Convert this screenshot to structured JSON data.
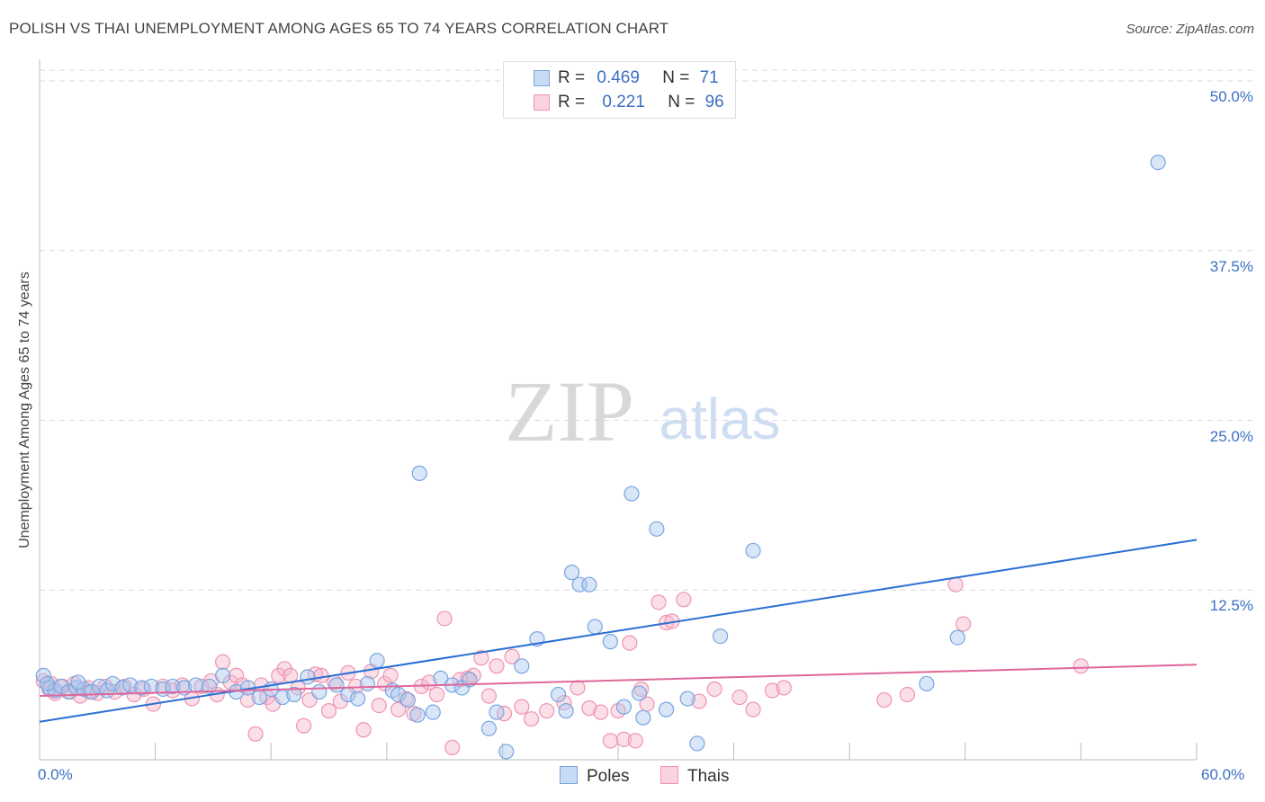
{
  "title": "POLISH VS THAI UNEMPLOYMENT AMONG AGES 65 TO 74 YEARS CORRELATION CHART",
  "source": "Source: ZipAtlas.com",
  "watermark": {
    "zip": "ZIP",
    "atlas": "atlas"
  },
  "legend_top": {
    "r_label": "R =",
    "n_label": "N =",
    "rows": [
      {
        "r": "0.469",
        "n": "71",
        "color": "#a8c7f0"
      },
      {
        "r": "0.221",
        "n": "96",
        "color": "#f7b8cc"
      }
    ]
  },
  "colors": {
    "poles_fill": "#a8c7f0",
    "poles_stroke": "#7aa5e0",
    "poles_line": "#2a6fd4",
    "thais_fill": "#f7b8cc",
    "thais_stroke": "#ef93b1",
    "thais_line": "#e0679a",
    "tick_text": "#3b6fc4",
    "grid": "#d9d9d9"
  },
  "chart_data": {
    "type": "scatter",
    "title": "POLISH VS THAI UNEMPLOYMENT AMONG AGES 65 TO 74 YEARS CORRELATION CHART",
    "xlabel": "",
    "ylabel": "Unemployment Among Ages 65 to 74 years",
    "xlim": [
      0,
      60
    ],
    "ylim": [
      0,
      50
    ],
    "x_tick_labels": [
      "0.0%",
      "60.0%"
    ],
    "y_ticks": [
      {
        "value": 12.5,
        "label": "12.5%"
      },
      {
        "value": 25,
        "label": "25.0%"
      },
      {
        "value": 37.5,
        "label": "37.5%"
      },
      {
        "value": 50,
        "label": "50.0%"
      }
    ],
    "grid": true,
    "legend_position": "bottom-center",
    "series": [
      {
        "name": "Poles",
        "r": 0.469,
        "n": 71,
        "trend": [
          [
            0,
            2.8
          ],
          [
            60,
            16.2
          ]
        ],
        "points": [
          [
            0.2,
            6.2
          ],
          [
            0.5,
            5.3
          ],
          [
            0.8,
            5.1
          ],
          [
            1.1,
            5.4
          ],
          [
            1.5,
            5.0
          ],
          [
            1.9,
            5.3
          ],
          [
            2.3,
            5.2
          ],
          [
            2.7,
            5.0
          ],
          [
            3.1,
            5.4
          ],
          [
            3.5,
            5.1
          ],
          [
            3.8,
            5.6
          ],
          [
            4.3,
            5.3
          ],
          [
            4.7,
            5.5
          ],
          [
            5.3,
            5.3
          ],
          [
            5.8,
            5.4
          ],
          [
            6.4,
            5.2
          ],
          [
            6.9,
            5.4
          ],
          [
            7.5,
            5.3
          ],
          [
            8.1,
            5.5
          ],
          [
            8.8,
            5.4
          ],
          [
            9.5,
            6.2
          ],
          [
            10.2,
            5.0
          ],
          [
            10.8,
            5.3
          ],
          [
            11.4,
            4.6
          ],
          [
            12.0,
            5.2
          ],
          [
            12.6,
            4.6
          ],
          [
            13.2,
            4.8
          ],
          [
            13.9,
            6.1
          ],
          [
            14.5,
            5.0
          ],
          [
            15.4,
            5.5
          ],
          [
            16.0,
            4.8
          ],
          [
            16.5,
            4.5
          ],
          [
            17.0,
            5.6
          ],
          [
            17.5,
            7.3
          ],
          [
            18.3,
            5.1
          ],
          [
            18.6,
            4.8
          ],
          [
            19.1,
            4.4
          ],
          [
            19.6,
            3.3
          ],
          [
            19.7,
            21.1
          ],
          [
            20.4,
            3.5
          ],
          [
            20.8,
            6.0
          ],
          [
            21.4,
            5.5
          ],
          [
            21.9,
            5.3
          ],
          [
            22.3,
            5.9
          ],
          [
            23.3,
            2.3
          ],
          [
            23.7,
            3.5
          ],
          [
            24.2,
            0.6
          ],
          [
            25.0,
            6.9
          ],
          [
            25.8,
            8.9
          ],
          [
            26.9,
            4.8
          ],
          [
            27.3,
            3.6
          ],
          [
            27.6,
            13.8
          ],
          [
            28.0,
            12.9
          ],
          [
            28.5,
            12.9
          ],
          [
            28.8,
            9.8
          ],
          [
            29.6,
            8.7
          ],
          [
            30.3,
            3.9
          ],
          [
            30.7,
            19.6
          ],
          [
            31.1,
            4.9
          ],
          [
            31.3,
            3.1
          ],
          [
            32.0,
            17.0
          ],
          [
            32.5,
            3.7
          ],
          [
            33.6,
            4.5
          ],
          [
            34.1,
            1.2
          ],
          [
            35.3,
            9.1
          ],
          [
            37.0,
            15.4
          ],
          [
            46.0,
            5.6
          ],
          [
            47.6,
            9.0
          ],
          [
            58.0,
            44.0
          ],
          [
            0.4,
            5.6
          ],
          [
            2.0,
            5.7
          ]
        ]
      },
      {
        "name": "Thais",
        "r": 0.221,
        "n": 96,
        "trend": [
          [
            0,
            4.7
          ],
          [
            60,
            7.0
          ]
        ],
        "points": [
          [
            0.2,
            5.8
          ],
          [
            0.5,
            5.2
          ],
          [
            0.8,
            4.9
          ],
          [
            1.2,
            5.4
          ],
          [
            1.6,
            5.0
          ],
          [
            2.1,
            4.7
          ],
          [
            2.5,
            5.3
          ],
          [
            3.0,
            4.9
          ],
          [
            3.4,
            5.4
          ],
          [
            3.9,
            5.0
          ],
          [
            4.4,
            5.4
          ],
          [
            4.9,
            4.8
          ],
          [
            5.4,
            5.2
          ],
          [
            5.9,
            4.1
          ],
          [
            6.4,
            5.4
          ],
          [
            6.9,
            5.1
          ],
          [
            7.4,
            5.5
          ],
          [
            7.9,
            4.5
          ],
          [
            8.4,
            5.4
          ],
          [
            8.9,
            5.8
          ],
          [
            9.2,
            4.8
          ],
          [
            9.5,
            7.2
          ],
          [
            9.9,
            5.7
          ],
          [
            10.2,
            6.2
          ],
          [
            10.5,
            5.5
          ],
          [
            10.8,
            4.4
          ],
          [
            11.2,
            1.9
          ],
          [
            11.5,
            5.5
          ],
          [
            11.8,
            4.6
          ],
          [
            12.1,
            4.1
          ],
          [
            12.4,
            6.2
          ],
          [
            12.7,
            6.7
          ],
          [
            13.0,
            6.2
          ],
          [
            13.4,
            5.3
          ],
          [
            13.7,
            2.5
          ],
          [
            14.0,
            4.4
          ],
          [
            14.3,
            6.3
          ],
          [
            14.6,
            6.2
          ],
          [
            15.0,
            3.6
          ],
          [
            15.3,
            5.7
          ],
          [
            15.6,
            4.3
          ],
          [
            16.0,
            6.4
          ],
          [
            16.4,
            5.4
          ],
          [
            16.8,
            2.2
          ],
          [
            17.2,
            6.5
          ],
          [
            17.6,
            4.0
          ],
          [
            17.9,
            5.6
          ],
          [
            18.2,
            6.2
          ],
          [
            18.6,
            3.7
          ],
          [
            19.0,
            4.5
          ],
          [
            19.4,
            3.4
          ],
          [
            19.8,
            5.4
          ],
          [
            20.2,
            5.7
          ],
          [
            20.6,
            4.8
          ],
          [
            21.0,
            10.4
          ],
          [
            21.4,
            0.9
          ],
          [
            21.8,
            5.9
          ],
          [
            22.2,
            6.0
          ],
          [
            22.5,
            6.2
          ],
          [
            22.9,
            7.5
          ],
          [
            23.3,
            4.7
          ],
          [
            23.7,
            6.9
          ],
          [
            24.1,
            3.4
          ],
          [
            24.5,
            7.6
          ],
          [
            25.0,
            3.9
          ],
          [
            25.5,
            3.0
          ],
          [
            26.3,
            3.6
          ],
          [
            27.2,
            4.2
          ],
          [
            27.9,
            5.3
          ],
          [
            28.5,
            3.8
          ],
          [
            29.1,
            3.5
          ],
          [
            29.6,
            1.4
          ],
          [
            30.0,
            3.6
          ],
          [
            30.3,
            1.5
          ],
          [
            30.6,
            8.6
          ],
          [
            30.9,
            1.4
          ],
          [
            31.2,
            5.2
          ],
          [
            31.5,
            4.1
          ],
          [
            32.1,
            11.6
          ],
          [
            32.5,
            10.1
          ],
          [
            32.8,
            10.2
          ],
          [
            33.4,
            11.8
          ],
          [
            34.2,
            4.3
          ],
          [
            35.0,
            5.2
          ],
          [
            36.3,
            4.6
          ],
          [
            37.0,
            3.7
          ],
          [
            38.0,
            5.1
          ],
          [
            38.6,
            5.3
          ],
          [
            43.8,
            4.4
          ],
          [
            45.0,
            4.8
          ],
          [
            47.5,
            12.9
          ],
          [
            47.9,
            10.0
          ],
          [
            54.0,
            6.9
          ],
          [
            0.6,
            5.6
          ],
          [
            1.8,
            5.6
          ],
          [
            2.6,
            5.0
          ]
        ]
      }
    ]
  }
}
